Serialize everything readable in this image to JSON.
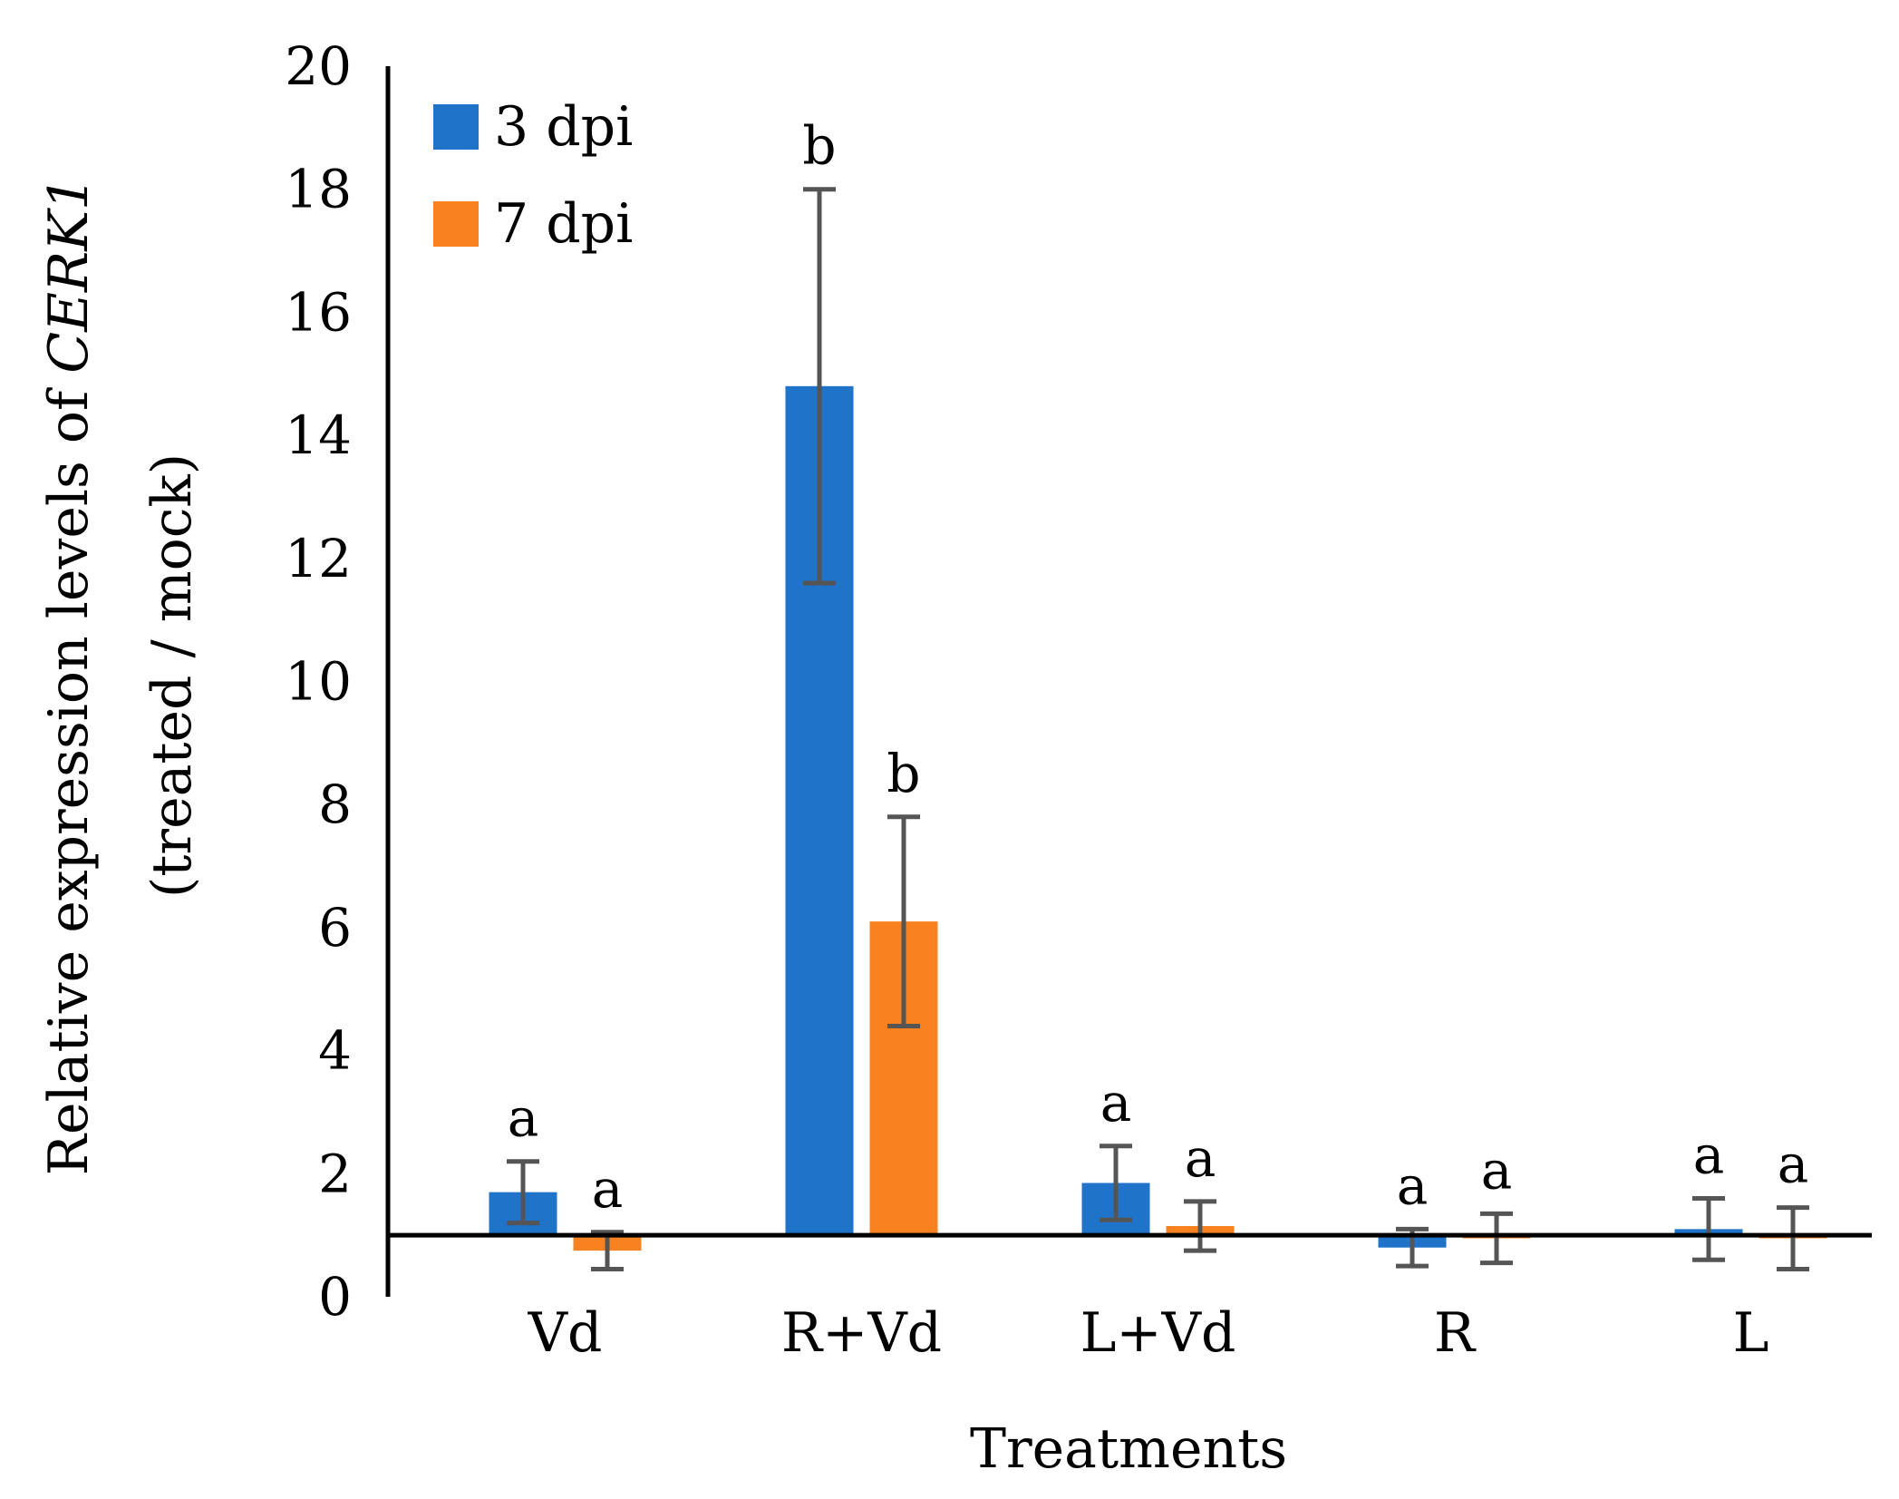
{
  "chart_data": {
    "type": "bar",
    "title": "",
    "xlabel": "Treatments",
    "ylabel_line1_prefix": "Relative expression levels of ",
    "ylabel_line1_gene": "CERK1",
    "ylabel_line2": "(treated / mock)",
    "ylim": [
      0,
      20
    ],
    "yticks": [
      0,
      2,
      4,
      6,
      8,
      10,
      12,
      14,
      16,
      18,
      20
    ],
    "baseline": 1,
    "categories": [
      "Vd",
      "R+Vd",
      "L+Vd",
      "R",
      "L"
    ],
    "series": [
      {
        "name": "3 dpi",
        "color": "#1f73c9",
        "values": [
          1.7,
          14.8,
          1.85,
          0.8,
          1.1
        ],
        "error": [
          0.5,
          3.2,
          0.6,
          0.3,
          0.5
        ],
        "significance": [
          "a",
          "b",
          "a",
          "a",
          "a"
        ]
      },
      {
        "name": "7 dpi",
        "color": "#f7821f",
        "values": [
          0.75,
          6.1,
          1.15,
          0.95,
          0.95
        ],
        "error": [
          0.3,
          1.7,
          0.4,
          0.4,
          0.5
        ],
        "significance": [
          "a",
          "b",
          "a",
          "a",
          "a"
        ]
      }
    ],
    "legend_position": "top-left",
    "error_bar_color": "#555555"
  }
}
